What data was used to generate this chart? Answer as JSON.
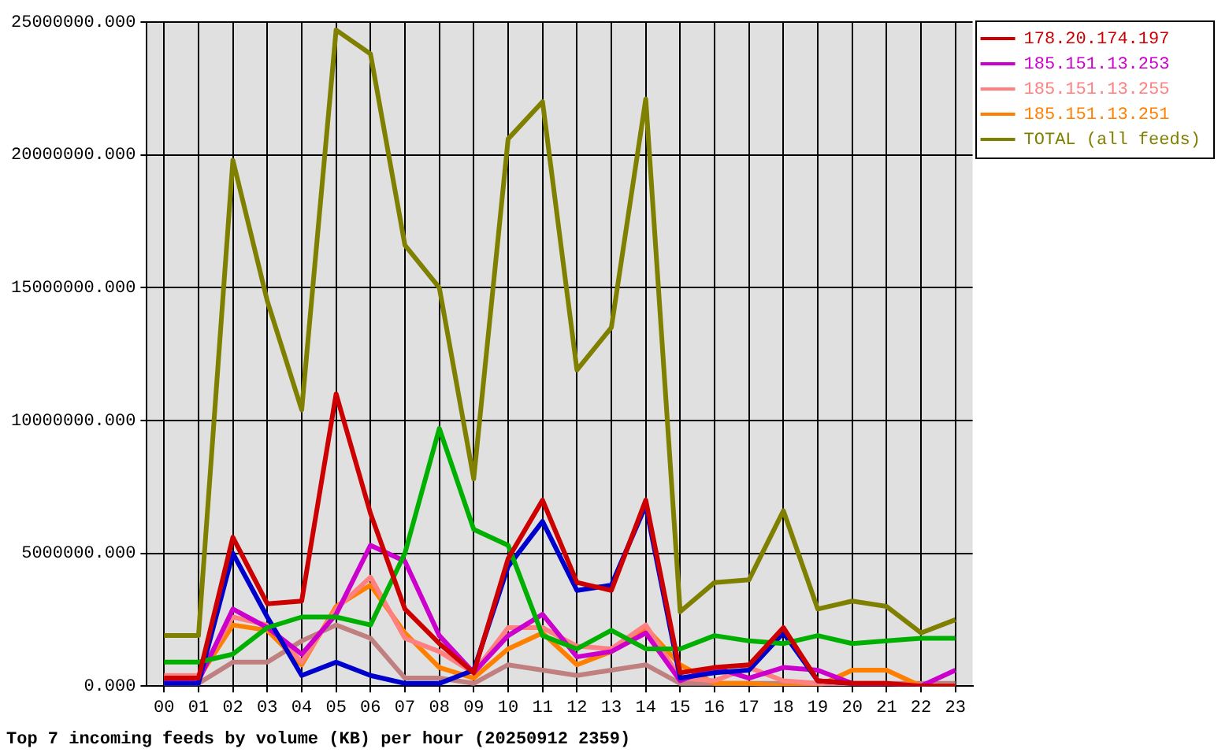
{
  "chart_data": {
    "type": "line",
    "title": "Top 7 incoming feeds by volume (KB) per hour (20250912 2359)",
    "categories": [
      "00",
      "01",
      "02",
      "03",
      "04",
      "05",
      "06",
      "07",
      "08",
      "09",
      "10",
      "11",
      "12",
      "13",
      "14",
      "15",
      "16",
      "17",
      "18",
      "19",
      "20",
      "21",
      "22",
      "23"
    ],
    "series": [
      {
        "name": "178.20.174.197",
        "color": "#cc0000",
        "values": [
          300000,
          300000,
          5600000,
          3100000,
          3200000,
          11000000,
          6500000,
          2900000,
          1600000,
          500000,
          4800000,
          7000000,
          3900000,
          3600000,
          7000000,
          500000,
          700000,
          800000,
          2200000,
          200000,
          100000,
          100000,
          0,
          0
        ]
      },
      {
        "color": "#00b000",
        "values": [
          900000,
          900000,
          1200000,
          2200000,
          2600000,
          2600000,
          2300000,
          5000000,
          9700000,
          5900000,
          5300000,
          1900000,
          1400000,
          2100000,
          1400000,
          1400000,
          1900000,
          1700000,
          1600000,
          1900000,
          1600000,
          1700000,
          1800000,
          1800000
        ]
      },
      {
        "color": "#0000cc",
        "values": [
          100000,
          100000,
          5000000,
          2600000,
          400000,
          900000,
          400000,
          100000,
          100000,
          600000,
          4500000,
          6200000,
          3600000,
          3800000,
          6800000,
          300000,
          500000,
          600000,
          2000000,
          200000,
          100000,
          null,
          null,
          null
        ]
      },
      {
        "name": "185.151.13.253",
        "color": "#cc00cc",
        "values": [
          200000,
          200000,
          2900000,
          2200000,
          1200000,
          2700000,
          5300000,
          4700000,
          1900000,
          500000,
          1900000,
          2700000,
          1100000,
          1300000,
          2000000,
          200000,
          700000,
          300000,
          700000,
          600000,
          100000,
          0,
          0,
          600000
        ]
      },
      {
        "name": "185.151.13.255",
        "color": "#ff8080",
        "values": [
          400000,
          400000,
          2600000,
          2300000,
          900000,
          2900000,
          4100000,
          1800000,
          1300000,
          500000,
          2200000,
          2200000,
          1500000,
          1400000,
          2300000,
          300000,
          200000,
          700000,
          200000,
          100000,
          100000,
          100000,
          0,
          0
        ]
      },
      {
        "name": "185.151.13.251",
        "color": "#ff8000",
        "values": [
          300000,
          300000,
          2300000,
          2100000,
          800000,
          3000000,
          3800000,
          2000000,
          700000,
          300000,
          1400000,
          2000000,
          800000,
          1300000,
          2200000,
          800000,
          100000,
          100000,
          0,
          0,
          600000,
          600000,
          0,
          0
        ]
      },
      {
        "color": "#c08080",
        "values": [
          100000,
          100000,
          900000,
          900000,
          1700000,
          2300000,
          1800000,
          300000,
          300000,
          100000,
          800000,
          600000,
          400000,
          600000,
          800000,
          100000,
          100000,
          100000,
          100000,
          100000,
          100000,
          100000,
          100000,
          100000
        ]
      },
      {
        "name": "TOTAL (all feeds)",
        "color": "#808000",
        "values": [
          1900000,
          1900000,
          19800000,
          14500000,
          10400000,
          24700000,
          23800000,
          16600000,
          15000000,
          7800000,
          20600000,
          22000000,
          11900000,
          13500000,
          22100000,
          2800000,
          3900000,
          4000000,
          6600000,
          2900000,
          3200000,
          3000000,
          2000000,
          2500000
        ]
      }
    ],
    "ylim": [
      0,
      25000000
    ],
    "yticks": [
      {
        "value": 0,
        "label": "0.000"
      },
      {
        "value": 5000000,
        "label": "5000000.000"
      },
      {
        "value": 10000000,
        "label": "10000000.000"
      },
      {
        "value": 15000000,
        "label": "15000000.000"
      },
      {
        "value": 20000000,
        "label": "20000000.000"
      },
      {
        "value": 25000000,
        "label": "25000000.000"
      }
    ],
    "grid": true,
    "legend": "top right",
    "marker": "none",
    "line_style": "solid"
  }
}
